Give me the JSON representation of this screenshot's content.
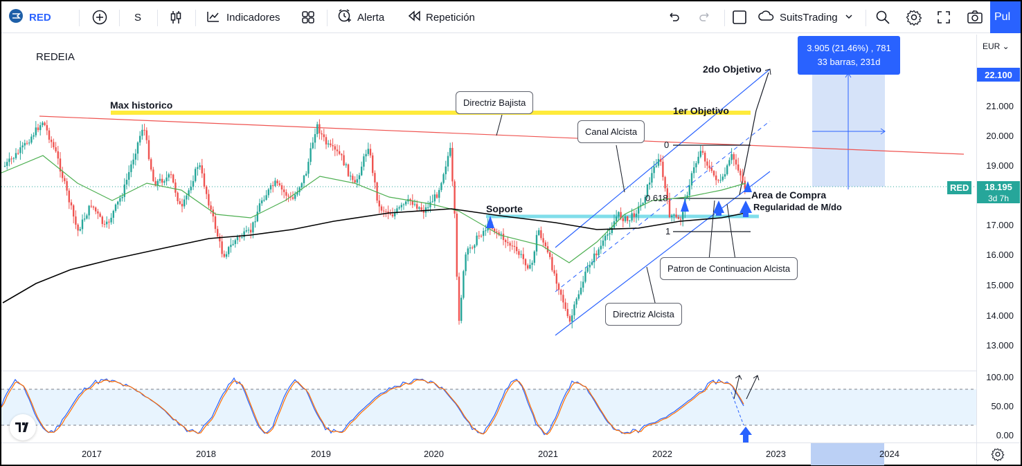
{
  "toolbar": {
    "symbol": "RED",
    "interval": "S",
    "indicators_label": "Indicadores",
    "alert_label": "Alerta",
    "replay_label": "Repetición",
    "layout_name": "SuitsTrading",
    "publish_label": "Pul"
  },
  "chart": {
    "ticker_name": "REDEIA",
    "currency": "EUR",
    "price_ticks": [
      "22.100",
      "21.000",
      "20.000",
      "19.000",
      "18.195",
      "17.000",
      "16.000",
      "15.000",
      "14.000",
      "13.000"
    ],
    "current_price": "18.195",
    "current_symbol": "RED",
    "countdown": "3d 7h",
    "osc_ticks": [
      "100.00",
      "50.00",
      "0.00"
    ],
    "time_ticks": [
      "2017",
      "2018",
      "2019",
      "2020",
      "2021",
      "2022",
      "2023",
      "2024"
    ],
    "colors": {
      "up_candle": "#26a69a",
      "down_candle": "#ef5350",
      "resistance": "#ffeb3b",
      "support": "#80deea",
      "channel": "#2962ff",
      "downtrend": "#ef5350",
      "ma_green": "#4caf50",
      "ma_black": "#000000",
      "stoch_k": "#2962ff",
      "stoch_d": "#ff6d00"
    }
  },
  "annotations": {
    "max_historico": "Max historico",
    "directriz_bajista": "Directriz Bajista",
    "primer_objetivo": "1er Objetivo",
    "segundo_objetivo": "2do Objetivo",
    "canal_alcista": "Canal Alcista",
    "soporte": "Soporte",
    "area_compra": "Area de Compra",
    "regularidad": "Regularidad de M/do",
    "patron": "Patron de Continuacion Alcista",
    "directriz_alcista": "Directriz Alcista",
    "fib_0": "0",
    "fib_0618": "0.618",
    "fib_1": "1"
  },
  "measure": {
    "line1": "3.905 (21.46%) , 781",
    "line2": "33 barras, 231d"
  }
}
